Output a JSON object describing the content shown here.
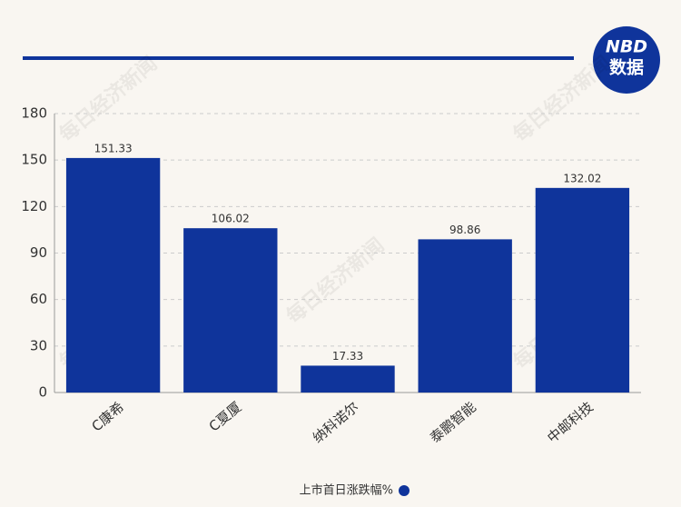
{
  "logo": {
    "top": "NBD",
    "bottom": "数据"
  },
  "watermark": "每日经济新闻",
  "chart_data": {
    "type": "bar",
    "categories": [
      "C康希",
      "C夏厦",
      "纳科诺尔",
      "泰鹏智能",
      "中邮科技"
    ],
    "series": [
      {
        "name": "上市首日涨跌幅%",
        "color": "#0f349b",
        "values": [
          151.33,
          106.02,
          17.33,
          98.86,
          132.02
        ]
      }
    ],
    "ylim": [
      0,
      180
    ],
    "yticks": [
      0,
      30,
      60,
      90,
      120,
      150,
      180
    ],
    "grid": true,
    "legend": "bottom"
  }
}
